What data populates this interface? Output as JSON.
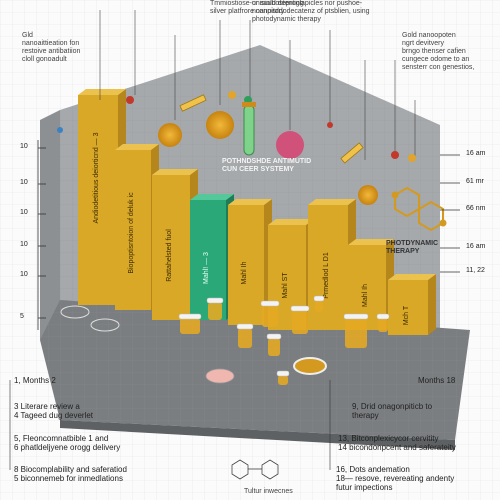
{
  "top_texts": [
    {
      "text": "Tmmiostiose-or suubostenting\nsilver platfrore conpisrry",
      "name": "top-text-1"
    },
    {
      "text": "unisiold deproglapicles nor pushoe-\nnnanoitddodecatenz of ptsblien, using\nphotodynamic therapy",
      "name": "top-text-2"
    }
  ],
  "left_note": "Gld\nnanoaittieation fon\nrestoive antibatiion\ncloll gonoadult",
  "right_note": "Gold nanoopoten\nngrt devitvery\nbrngo thenser cafien\ncungece odome to an\nsensterr con genestios,",
  "right_ticks": [
    "16 am",
    "61 mr",
    "66 nm",
    "16 am",
    "11, 22"
  ],
  "left_ticks": [
    "10",
    "10",
    "10",
    "10",
    "10",
    "5"
  ],
  "bar_labels": [
    "Andiodetitious deiorticnd — 3",
    "Biopoptisntoion of deluk ic",
    "Rattahelsted fuol",
    "Mahl! — 3",
    "Mahl Ih",
    "Mahl ST",
    "Prmedlod L D1",
    "Mahl Ih",
    "Mch T"
  ],
  "chart_labels": {
    "center": "POTHNDSHDE ANTIMUTID\nCUN CEER SYSTEMY",
    "photodynamic": "PHOTDYNAMIC\nTHERAPY"
  },
  "bottom_left": [
    "1, Months 2",
    "3  Literare review a\n4  Tageed dug deverlet",
    "5, Fleoncomnatbible 1 and\n6  phatldeljyene orogg delivery",
    "8  Biocomplability and saferatiod\n5  biconnemeb for inmedlations"
  ],
  "bottom_right": [
    "Months 18",
    "9, Drid onagonpiticb to\n   therapy",
    "13, Bitconplexicycor cervitity\n14  bicondonpcent and saferateity",
    "16, Dots andemation\n18— resove, revereating andenty\n     futur impections"
  ],
  "bottom_caption": "Tultur inwecnes",
  "colors": {
    "gold": "#d9a826",
    "gold_dark": "#b5861b",
    "green": "#2aa878",
    "floor": "#7e8184",
    "wall": "#a7aaad",
    "particle": "#d99a1c",
    "pink": "#d04a6e"
  },
  "icons": [
    "nanoparticle-icon",
    "virus-icon",
    "test-tube-icon",
    "syringe-icon",
    "molecule-icon",
    "jar-icon",
    "petri-dish-icon"
  ]
}
